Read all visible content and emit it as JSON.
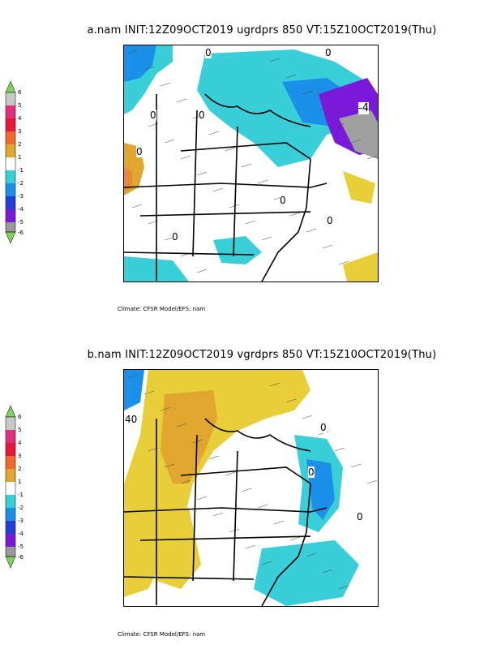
{
  "panels": [
    {
      "title": "a.nam  INIT:12Z09OCT2019  ugrdprs  850  VT:15Z10OCT2019(Thu)",
      "credit": "Climate: CFSR Model/EFS: nam",
      "contour_labels": [
        "0",
        "0",
        "0",
        "0",
        "0",
        "0",
        "0",
        "0",
        "-4"
      ]
    },
    {
      "title": "b.nam  INIT:12Z09OCT2019  vgrdprs  850  VT:15Z10OCT2019(Thu)",
      "credit": "Climate: CFSR Model/EFS: nam",
      "contour_labels": [
        "40",
        "0",
        "0",
        "0"
      ]
    }
  ],
  "colorbar": {
    "labels": [
      "6",
      "5",
      "4",
      "3",
      "2",
      "1",
      "-1",
      "-2",
      "-3",
      "-4",
      "-5",
      "-6"
    ],
    "colors": [
      "#7fd35a",
      "#c8c8c8",
      "#e0307a",
      "#e8163a",
      "#f06a2c",
      "#e0a62e",
      "#e8cf3a",
      "#ffffff",
      "#38cfd8",
      "#1a90e8",
      "#2040d8",
      "#7a1ad8",
      "#a040e0",
      "#9a9a9a",
      "#7fd35a"
    ]
  }
}
